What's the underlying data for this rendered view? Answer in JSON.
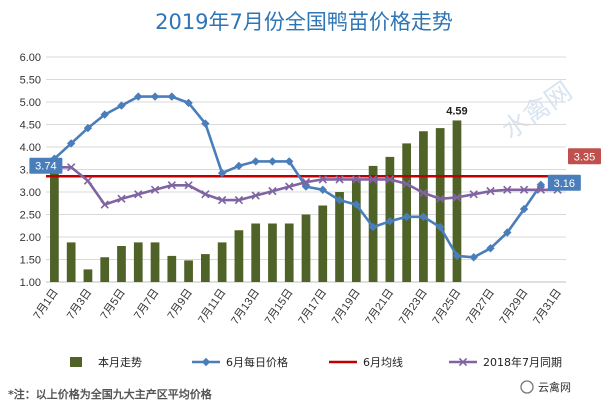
{
  "chart_data": {
    "type": "bar+line",
    "title": "2019年7月份全国鸭苗价格走势",
    "xlabel": "",
    "ylabel": "",
    "ylim": [
      1.0,
      6.0
    ],
    "yticks": [
      "1.00",
      "1.50",
      "2.00",
      "2.50",
      "3.00",
      "3.50",
      "4.00",
      "4.50",
      "5.00",
      "5.50",
      "6.00"
    ],
    "x": [
      "7月1日",
      "7月2日",
      "7月3日",
      "7月4日",
      "7月5日",
      "7月6日",
      "7月7日",
      "7月8日",
      "7月9日",
      "7月10日",
      "7月11日",
      "7月12日",
      "7月13日",
      "7月14日",
      "7月15日",
      "7月16日",
      "7月17日",
      "7月18日",
      "7月19日",
      "7月20日",
      "7月21日",
      "7月22日",
      "7月23日",
      "7月24日",
      "7月25日",
      "7月26日",
      "7月27日",
      "7月28日",
      "7月29日",
      "7月30日",
      "7月31日"
    ],
    "xtick_every": 2,
    "series": [
      {
        "name": "本月走势",
        "kind": "bar",
        "color": "#4F6228",
        "values": [
          3.74,
          1.88,
          1.28,
          1.55,
          1.8,
          1.88,
          1.88,
          1.58,
          1.48,
          1.62,
          1.88,
          2.15,
          2.3,
          2.3,
          2.3,
          2.5,
          2.7,
          3.0,
          3.3,
          3.58,
          3.78,
          4.08,
          4.35,
          4.42,
          4.59,
          null,
          null,
          null,
          null,
          null,
          null
        ]
      },
      {
        "name": "6月每日价格",
        "kind": "line",
        "marker": "diamond",
        "color": "#4A7EBB",
        "values": [
          3.74,
          4.08,
          4.42,
          4.72,
          4.92,
          5.12,
          5.12,
          5.12,
          4.98,
          4.52,
          3.42,
          3.58,
          3.68,
          3.68,
          3.68,
          3.12,
          3.05,
          2.82,
          2.72,
          2.22,
          2.35,
          2.45,
          2.45,
          2.22,
          1.58,
          1.55,
          1.75,
          2.1,
          2.62,
          3.16,
          null
        ]
      },
      {
        "name": "6月均线",
        "kind": "hline",
        "color": "#C00000",
        "value": 3.35
      },
      {
        "name": "2018年7月同期",
        "kind": "line",
        "marker": "x",
        "color": "#8064A2",
        "values": [
          3.55,
          3.55,
          3.25,
          2.72,
          2.85,
          2.95,
          3.05,
          3.15,
          3.15,
          2.95,
          2.82,
          2.82,
          2.92,
          3.02,
          3.12,
          3.22,
          3.28,
          3.28,
          3.28,
          3.28,
          3.28,
          3.18,
          2.98,
          2.85,
          2.88,
          2.95,
          3.02,
          3.05,
          3.05,
          3.05,
          3.05
        ]
      }
    ],
    "data_labels": [
      {
        "series": "本月走势",
        "index": 24,
        "text": "4.59",
        "style": "plain"
      },
      {
        "series": "6月每日价格",
        "index": 0,
        "text": "3.74",
        "style": "box",
        "color": "#4A7EBB"
      },
      {
        "series": "6月每日价格",
        "index": 29,
        "text": "3.16",
        "style": "box",
        "color": "#4A7EBB"
      },
      {
        "series": "6月均线",
        "index": 30,
        "text": "3.35",
        "style": "box",
        "color": "#C0504D"
      }
    ],
    "legend": "bottom",
    "grid": true
  },
  "note": "*注：以上价格为全国九大主产区平均价格",
  "watermarks": {
    "center_text": "水禽网",
    "corner_text": "云禽网"
  }
}
